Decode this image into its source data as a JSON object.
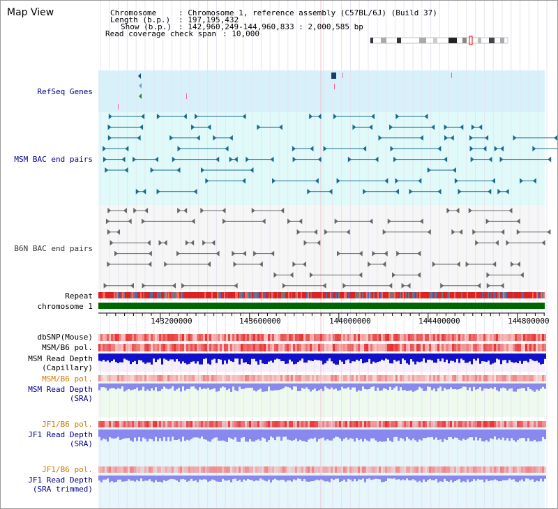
{
  "title": "Map View",
  "info": {
    "chromosome_key": "Chromosome",
    "chromosome_value": ": Chromosome 1, reference assembly (C57BL/6J) (Build 37)",
    "length_key": "Length (b.p.)",
    "length_value": ": 197,195,432",
    "show_key": "Show (b.p.)",
    "show_value": ": 142,960,249-144,960,833 : 2,000,585 bp",
    "span_key": "Read coverage check span",
    "span_value": ": 10,000"
  },
  "tracks": {
    "refseq": "RefSeq Genes",
    "msm_bac": "MSM BAC end pairs",
    "b6n_bac": "B6N BAC end pairs",
    "repeat": "Repeat",
    "chromosome": "chromosome 1",
    "dbsnp": "dbSNP(Mouse)",
    "msm_pol": "MSM/B6 pol.",
    "msm_depth_cap_1": "MSM Read Depth",
    "msm_depth_cap_2": "(Capillary)",
    "msm_pol_sra": "MSM/B6 pol.",
    "msm_depth_sra_1": "MSM Read Depth",
    "msm_depth_sra_2": "(SRA)",
    "jf1_pol_1": "JF1/B6 pol.",
    "jf1_depth_1": "JF1 Read Depth",
    "jf1_depth_2": "(SRA)",
    "jf1_pol_2": "JF1/B6 pol.",
    "jf1_trim_1": "JF1 Read Depth",
    "jf1_trim_2": "(SRA trimmed)"
  },
  "axis": {
    "ticks": [
      "143200000",
      "143600000",
      "144000000",
      "144400000",
      "144800000"
    ]
  },
  "colors": {
    "refseq_bg": "#d8f0fa",
    "bac_bg": "#e0fafa",
    "b6n_bg": "#f6f6f6",
    "msm_feature": "#1a6b8a",
    "b6n_feature": "#666666",
    "chrom": "#006600",
    "depth_dark": "#1111cc",
    "depth_light": "#8888ee",
    "pol": "#ee3333",
    "label_blue": "#000088",
    "label_orange": "#cc7700"
  }
}
